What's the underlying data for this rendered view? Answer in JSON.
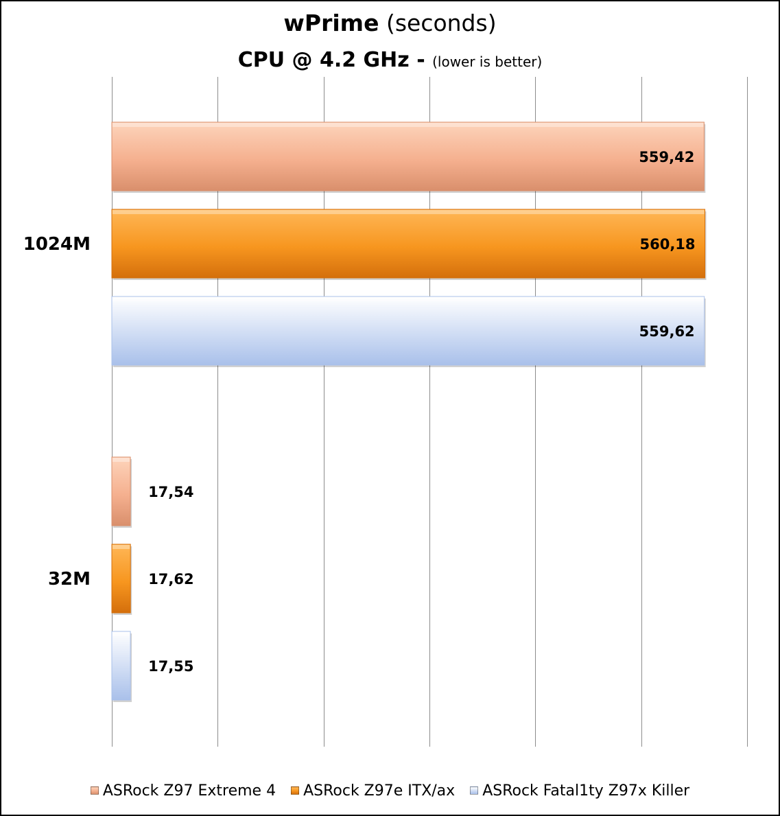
{
  "title": {
    "main_bold": "wPrime",
    "main_rest": " (seconds)",
    "sub_bold": "CPU @ 4.2 GHz - ",
    "sub_small": "(lower is better)"
  },
  "chart_data": {
    "type": "bar",
    "orientation": "horizontal",
    "categories": [
      "1024M",
      "32M"
    ],
    "series": [
      {
        "name": "ASRock Z97 Extreme 4",
        "values": [
          559.42,
          17.54
        ],
        "labels": [
          "559,42",
          "17,54"
        ],
        "color_light": "#fdd4bb",
        "color_mid": "#f5b08f",
        "color_dark": "#d98f6c"
      },
      {
        "name": "ASRock Z97e ITX/ax",
        "values": [
          560.18,
          17.62
        ],
        "labels": [
          "560,18",
          "17,62"
        ],
        "color_light": "#ffb757",
        "color_mid": "#f7961f",
        "color_dark": "#d46f0c"
      },
      {
        "name": "ASRock Fatal1ty Z97x Killer",
        "values": [
          559.62,
          17.55
        ],
        "labels": [
          "559,62",
          "17,55"
        ],
        "color_light": "#ffffff",
        "color_mid": "#cfdcf4",
        "color_dark": "#a9c0ea"
      }
    ],
    "xlim": [
      0,
      600
    ],
    "x_tick_step": 100,
    "grid": true,
    "legend_position": "bottom"
  }
}
